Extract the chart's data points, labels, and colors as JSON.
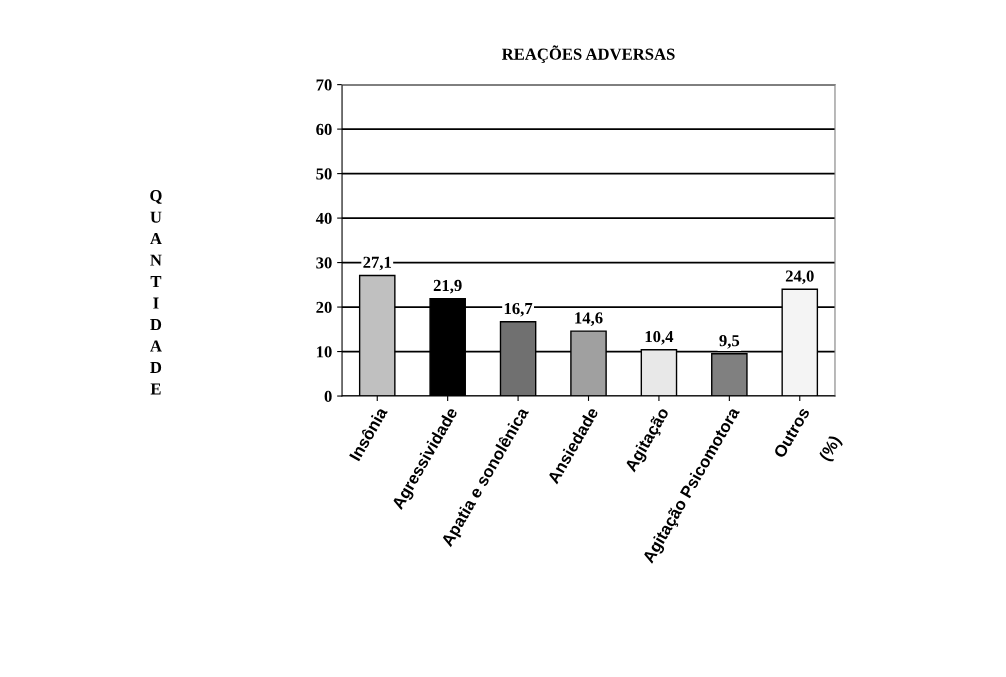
{
  "chart_data": {
    "type": "bar",
    "title": "REAÇÕES ADVERSAS",
    "ylabel": "QUANTIDADE",
    "xlabel": "(%)",
    "categories": [
      "Insônia",
      "Agressividade",
      "Apatia e sonolênica",
      "Ansiedade",
      "Agitação",
      "Agitação Psicomotora",
      "Outros"
    ],
    "values": [
      27.1,
      21.9,
      16.7,
      14.6,
      10.4,
      9.5,
      24.0
    ],
    "colors": [
      "#c0c0c0",
      "#000000",
      "#707070",
      "#a0a0a0",
      "#e8e8e8",
      "#808080",
      "#f4f4f4"
    ],
    "value_labels": [
      "27,1",
      "21,9",
      "16,7",
      "14,6",
      "10,4",
      "9,5",
      "24,0"
    ],
    "ylim": [
      0,
      70
    ],
    "yticks": [
      0,
      10,
      20,
      30,
      40,
      50,
      60,
      70
    ],
    "grid": "y",
    "legend": false
  }
}
